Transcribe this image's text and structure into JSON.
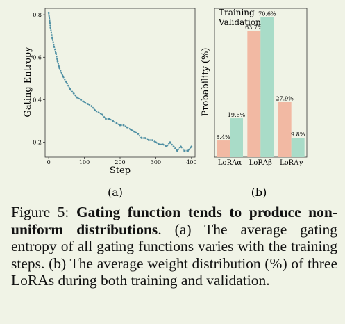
{
  "colors": {
    "background": "#f0f3e6",
    "entropy_line": "#4e8fa3",
    "training": "#f2b9a3",
    "validation": "#a9dcc8"
  },
  "panel_a_label": "(a)",
  "panel_b_label": "(b)",
  "caption": {
    "prefix": "Figure 5: ",
    "bold": "Gating function tends to produce non-uniform distributions",
    "rest": ". (a) The average gating entropy of all gating functions varies with the training steps. (b) The average weight distribution (%) of three LoRAs during both training and validation."
  },
  "chart_data": [
    {
      "type": "line",
      "title": "",
      "xlabel": "Step",
      "ylabel": "Gating Entropy",
      "xlim": [
        -10,
        410
      ],
      "ylim": [
        0.13,
        0.83
      ],
      "xticks": [
        0,
        100,
        200,
        300,
        400
      ],
      "yticks": [
        0.2,
        0.4,
        0.6,
        0.8
      ],
      "grid": false,
      "series": [
        {
          "x": [
            0,
            5,
            10,
            15,
            20,
            25,
            30,
            40,
            50,
            60,
            70,
            80,
            90,
            100,
            110,
            120,
            130,
            140,
            150,
            160,
            170,
            180,
            190,
            200,
            210,
            220,
            230,
            240,
            250,
            260,
            270,
            280,
            290,
            300,
            310,
            320,
            330,
            340,
            350,
            360,
            370,
            380,
            390,
            400
          ],
          "y": [
            0.81,
            0.74,
            0.69,
            0.65,
            0.62,
            0.58,
            0.55,
            0.51,
            0.48,
            0.45,
            0.43,
            0.41,
            0.4,
            0.39,
            0.38,
            0.37,
            0.35,
            0.34,
            0.33,
            0.31,
            0.31,
            0.3,
            0.29,
            0.28,
            0.28,
            0.27,
            0.26,
            0.25,
            0.24,
            0.22,
            0.22,
            0.21,
            0.21,
            0.2,
            0.19,
            0.19,
            0.18,
            0.2,
            0.18,
            0.16,
            0.18,
            0.16,
            0.16,
            0.18
          ]
        }
      ]
    },
    {
      "type": "bar",
      "title": "",
      "xlabel": "",
      "ylabel": "Probability (%)",
      "ylim": [
        0,
        75
      ],
      "categories": [
        "LoRAα",
        "LoRAβ",
        "LoRAγ"
      ],
      "legend_position": "top-left",
      "series": [
        {
          "name": "Training",
          "values": [
            8.4,
            63.7,
            27.9
          ],
          "labels": [
            "8.4%",
            "63.7%",
            "27.9%"
          ]
        },
        {
          "name": "Validation",
          "values": [
            19.6,
            70.6,
            9.8
          ],
          "labels": [
            "19.6%",
            "70.6%",
            "9.8%"
          ]
        }
      ]
    }
  ]
}
